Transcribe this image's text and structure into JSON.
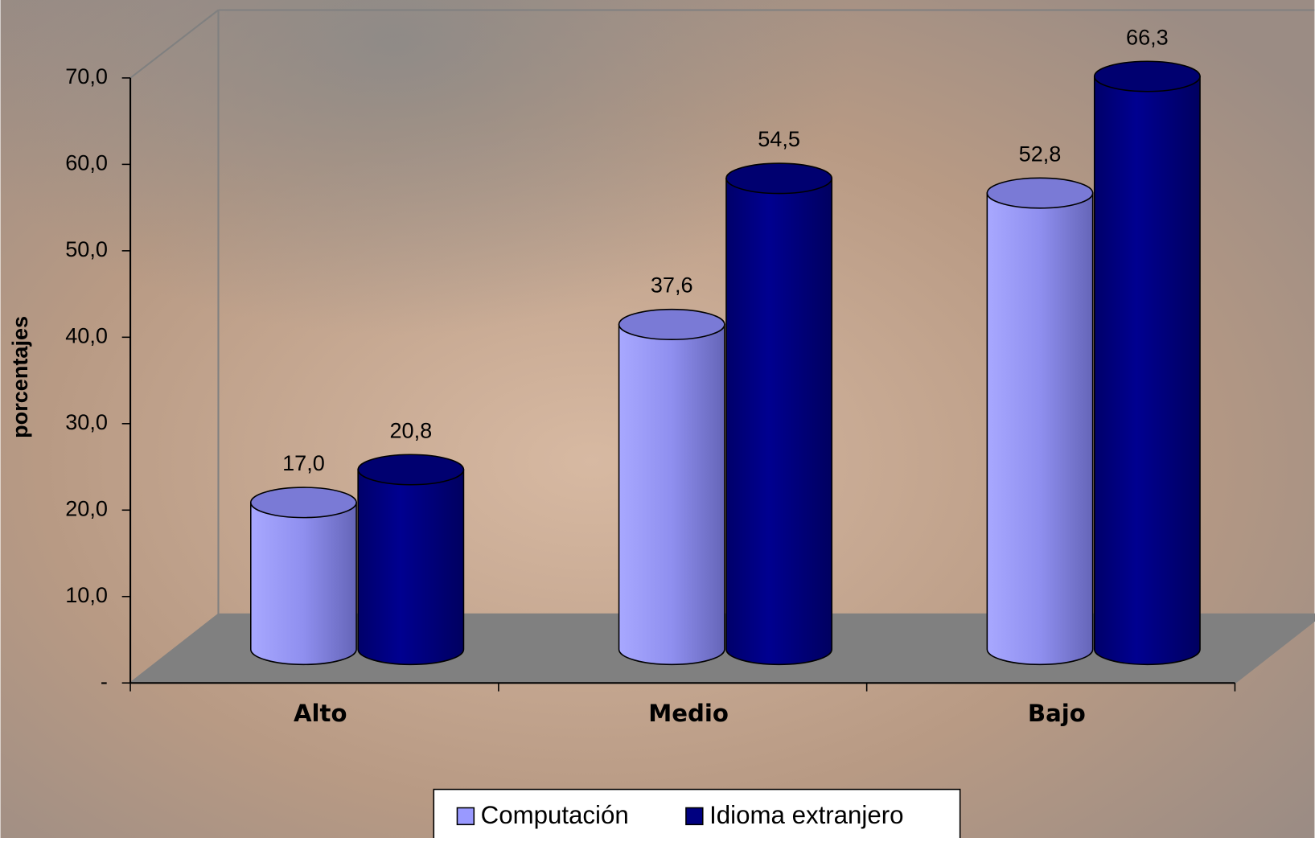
{
  "chart_data": {
    "type": "bar3d",
    "y_label": "porcentajes",
    "categories": [
      "Alto",
      "Medio",
      "Bajo"
    ],
    "series": [
      {
        "name": "Computación",
        "color": "#9999ff",
        "values": [
          17.0,
          37.6,
          52.8
        ],
        "value_labels": [
          "17,0",
          "37,6",
          "52,8"
        ]
      },
      {
        "name": "Idioma extranjero",
        "color": "#000080",
        "values": [
          20.8,
          54.5,
          66.3
        ],
        "value_labels": [
          "20,8",
          "54,5",
          "66,3"
        ]
      }
    ],
    "ylim": [
      0,
      70
    ],
    "yticks": [
      {
        "value": 0,
        "label": "-"
      },
      {
        "value": 10,
        "label": "10,0"
      },
      {
        "value": 20,
        "label": "20,0"
      },
      {
        "value": 30,
        "label": "30,0"
      },
      {
        "value": 40,
        "label": "40,0"
      },
      {
        "value": 50,
        "label": "50,0"
      },
      {
        "value": 60,
        "label": "60,0"
      },
      {
        "value": 70,
        "label": "70,0"
      }
    ],
    "legend": "bottom"
  }
}
